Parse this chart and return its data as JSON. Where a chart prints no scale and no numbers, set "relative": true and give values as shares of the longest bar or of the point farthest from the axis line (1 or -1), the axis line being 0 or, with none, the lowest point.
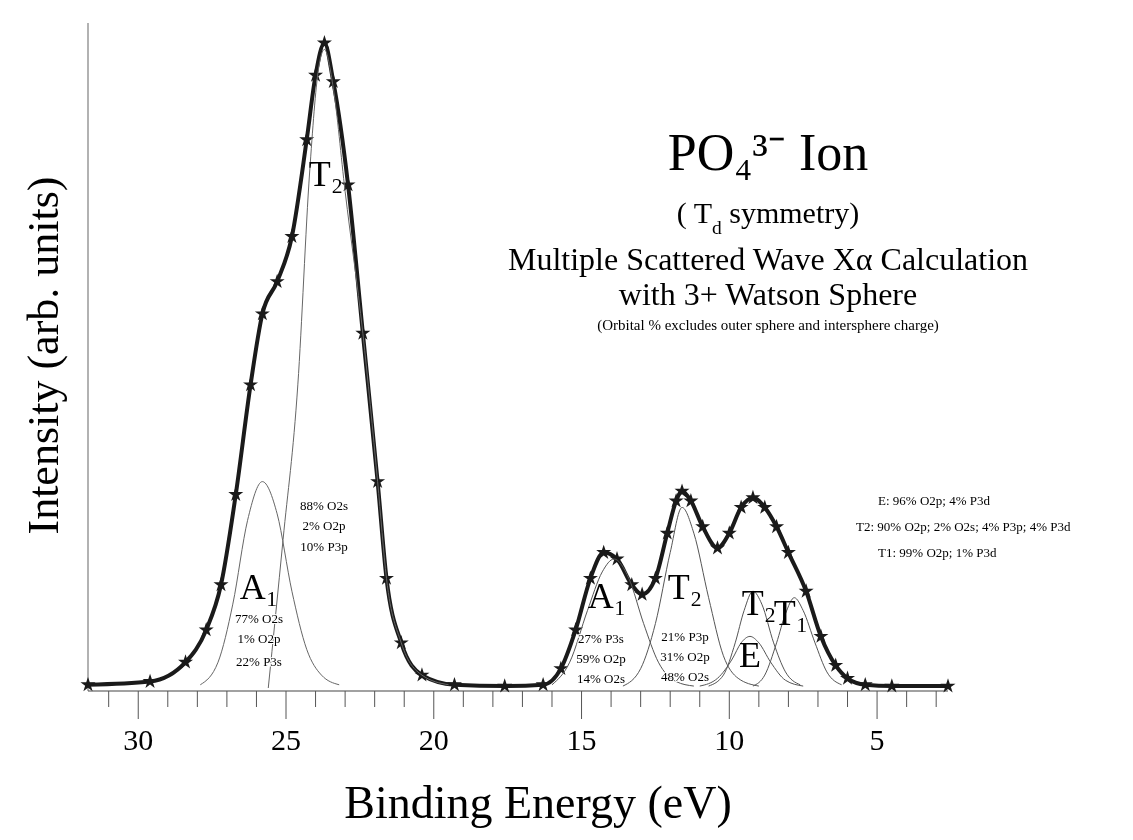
{
  "chart_data": {
    "type": "line",
    "relative": true,
    "title": "PO₄³⁻  Ion",
    "subtitle": "( T$_{d}$  symmetry)",
    "xlabel": "Binding Energy (eV)",
    "ylabel": "Intensity (arb. units)",
    "xlim": [
      31.7,
      2.6
    ],
    "xticks": [
      {
        "value": 31,
        "label": null
      },
      30,
      {
        "value": 29,
        "label": null
      },
      {
        "value": 28,
        "label": null
      },
      {
        "value": 27,
        "label": null
      },
      {
        "value": 26,
        "label": null
      },
      25,
      {
        "value": 24,
        "label": null
      },
      {
        "value": 23,
        "label": null
      },
      {
        "value": 22,
        "label": null
      },
      {
        "value": 21,
        "label": null
      },
      20,
      {
        "value": 19,
        "label": null
      },
      {
        "value": 18,
        "label": null
      },
      {
        "value": 17,
        "label": null
      },
      {
        "value": 16,
        "label": null
      },
      15,
      {
        "value": 14,
        "label": null
      },
      {
        "value": 13,
        "label": null
      },
      {
        "value": 12,
        "label": null
      },
      {
        "value": 11,
        "label": null
      },
      10,
      {
        "value": 9,
        "label": null
      },
      {
        "value": 8,
        "label": null
      },
      {
        "value": 7,
        "label": null
      },
      {
        "value": 6,
        "label": null
      },
      5,
      {
        "value": 4,
        "label": null
      },
      {
        "value": 3,
        "label": null
      }
    ],
    "grid": false,
    "legend": false,
    "series": [
      {
        "color": "#1a1a1a",
        "marker": "star",
        "x": [
          31.7,
          29.6,
          28.4,
          27.7,
          27.2,
          26.7,
          26.2,
          25.8,
          25.3,
          24.8,
          24.3,
          24.0,
          23.7,
          23.4,
          22.9,
          22.4,
          21.9,
          21.6,
          21.1,
          20.4,
          19.3,
          17.6,
          16.3,
          15.7,
          15.2,
          14.7,
          14.25,
          13.8,
          13.3,
          12.95,
          12.5,
          12.1,
          11.8,
          11.6,
          11.3,
          10.9,
          10.4,
          10.0,
          9.6,
          9.2,
          8.8,
          8.4,
          8.0,
          7.4,
          6.9,
          6.4,
          6.0,
          5.4,
          4.5,
          2.6
        ],
        "values": [
          0.005,
          0.01,
          0.04,
          0.09,
          0.16,
          0.3,
          0.47,
          0.58,
          0.63,
          0.7,
          0.85,
          0.95,
          1.0,
          0.94,
          0.78,
          0.55,
          0.32,
          0.17,
          0.07,
          0.02,
          0.005,
          0.003,
          0.005,
          0.03,
          0.09,
          0.17,
          0.21,
          0.2,
          0.16,
          0.145,
          0.17,
          0.24,
          0.29,
          0.305,
          0.29,
          0.25,
          0.217,
          0.24,
          0.28,
          0.295,
          0.28,
          0.25,
          0.21,
          0.15,
          0.08,
          0.035,
          0.015,
          0.005,
          0.003,
          0.003
        ]
      },
      {
        "color": "#666666",
        "marker": "none",
        "x": [
          27.9,
          27.3,
          26.8,
          26.3,
          25.8,
          25.3,
          24.8,
          24.3,
          23.8,
          23.2
        ],
        "values": [
          0.005,
          0.04,
          0.13,
          0.26,
          0.32,
          0.27,
          0.15,
          0.06,
          0.02,
          0.005
        ]
      },
      {
        "color": "#666666",
        "marker": "none",
        "x": [
          25.6,
          25.1,
          24.6,
          24.2,
          23.9,
          23.7,
          23.4,
          23.0,
          22.4,
          21.9,
          21.6,
          21.1,
          20.4,
          19.5
        ],
        "values": [
          0.0,
          0.23,
          0.47,
          0.8,
          0.96,
          0.99,
          0.93,
          0.77,
          0.55,
          0.32,
          0.17,
          0.07,
          0.02,
          0.005
        ]
      },
      {
        "color": "#555555",
        "marker": "none",
        "x": [
          16.0,
          15.4,
          14.8,
          14.3,
          13.9,
          13.4,
          12.9,
          12.4,
          11.8,
          11.2
        ],
        "values": [
          0.005,
          0.04,
          0.12,
          0.18,
          0.2,
          0.17,
          0.1,
          0.04,
          0.01,
          0.003
        ]
      },
      {
        "color": "#555555",
        "marker": "none",
        "x": [
          13.6,
          13.0,
          12.5,
          12.0,
          11.6,
          11.2,
          10.7,
          10.2,
          9.7,
          9.0
        ],
        "values": [
          0.003,
          0.03,
          0.1,
          0.21,
          0.28,
          0.24,
          0.14,
          0.05,
          0.015,
          0.003
        ]
      },
      {
        "color": "#555555",
        "marker": "none",
        "x": [
          10.7,
          10.2,
          9.8,
          9.5,
          9.2,
          8.9,
          8.5,
          8.1,
          7.6
        ],
        "values": [
          0.003,
          0.02,
          0.07,
          0.12,
          0.15,
          0.13,
          0.07,
          0.025,
          0.005
        ]
      },
      {
        "color": "#555555",
        "marker": "none",
        "x": [
          11.0,
          10.4,
          9.9,
          9.6,
          9.3,
          9.0,
          8.6,
          8.1,
          7.5
        ],
        "values": [
          0.003,
          0.015,
          0.045,
          0.07,
          0.08,
          0.07,
          0.04,
          0.012,
          0.003
        ]
      },
      {
        "color": "#555555",
        "marker": "none",
        "x": [
          9.2,
          8.8,
          8.4,
          8.1,
          7.8,
          7.5,
          7.1,
          6.7,
          6.2
        ],
        "values": [
          0.003,
          0.02,
          0.07,
          0.115,
          0.14,
          0.12,
          0.07,
          0.025,
          0.005
        ]
      }
    ],
    "annotations": [
      "Multiple Scattered Wave Xα  Calculation",
      "with 3+ Watson Sphere",
      "(Orbital % excludes outer sphere and intersphere charge)",
      "E: 96% O2p; 4% P3d",
      "T2: 90% O2p; 2% O2s; 4% P3p; 4% P3d",
      "T1: 99% O2p; 1% P3d",
      "A₁",
      "77% O2s",
      "1% O2p",
      "22% P3s",
      "T₂",
      "88% O2s",
      "2% O2p",
      "10% P3p",
      "A₁",
      "27% P3s",
      "59% O2p",
      "14% O2s",
      "T₂",
      "21% P3p",
      "31% O2p",
      "48% O2s",
      "T₂",
      "E",
      "T₁"
    ]
  }
}
